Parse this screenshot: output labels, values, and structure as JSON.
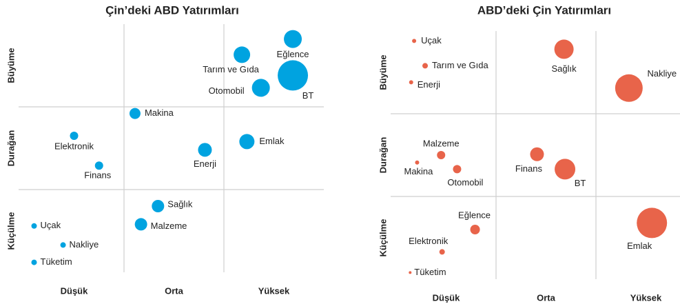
{
  "chart_data": [
    {
      "type": "bubble",
      "title": "Çin’deki ABD Yatırımları",
      "xlim": [
        0,
        3
      ],
      "ylim": [
        0,
        3
      ],
      "xticks": [
        {
          "value": 0.5,
          "label": "Düşük"
        },
        {
          "value": 1.5,
          "label": "Orta"
        },
        {
          "value": 2.5,
          "label": "Yüksek"
        }
      ],
      "yticks": [
        {
          "value": 0.5,
          "label": "Küçülme"
        },
        {
          "value": 1.5,
          "label": "Durağan"
        },
        {
          "value": 2.5,
          "label": "Büyüme"
        }
      ],
      "series": [
        {
          "color": "#00a3e0",
          "labels": [
            "Eğlence",
            "Tarım ve Gıda",
            "BT",
            "Otomobil",
            "Makina",
            "Elektronik",
            "Finans",
            "Enerji",
            "Emlak",
            "Sağlık",
            "Malzeme",
            "Uçak",
            "Nakliye",
            "Tüketim"
          ],
          "x": [
            2.69,
            2.18,
            2.69,
            2.37,
            1.11,
            0.5,
            0.75,
            1.81,
            2.23,
            1.34,
            1.17,
            0.1,
            0.39,
            0.1
          ],
          "values": [
            2.82,
            2.63,
            2.38,
            2.23,
            1.92,
            1.65,
            1.29,
            1.48,
            1.58,
            0.8,
            0.58,
            0.56,
            0.33,
            0.12
          ],
          "sizes": [
            13,
            12,
            22,
            13,
            8,
            6,
            6,
            10,
            11,
            9,
            9,
            4,
            4,
            4
          ]
        }
      ]
    },
    {
      "type": "bubble",
      "title": "ABD’deki Çin Yatırımları",
      "xlim": [
        0,
        3
      ],
      "ylim": [
        0,
        3
      ],
      "xticks": [
        {
          "value": 0.5,
          "label": "Düşük"
        },
        {
          "value": 1.5,
          "label": "Orta"
        },
        {
          "value": 2.5,
          "label": "Yüksek"
        }
      ],
      "yticks": [
        {
          "value": 0.5,
          "label": "Küçülme"
        },
        {
          "value": 1.5,
          "label": "Durağan"
        },
        {
          "value": 2.5,
          "label": "Büyüme"
        }
      ],
      "series": [
        {
          "color": "#e8644a",
          "labels": [
            "Uçak",
            "Tarım ve Gıda",
            "Enerji",
            "Sağlık",
            "Nakliye",
            "Malzeme",
            "Makina",
            "Otomobil",
            "Finans",
            "BT",
            "Eğlence",
            "Elektronik",
            "Tüketim",
            "Emlak"
          ],
          "x": [
            0.18,
            0.29,
            0.15,
            1.68,
            2.33,
            0.45,
            0.21,
            0.61,
            1.41,
            1.69,
            0.79,
            0.46,
            0.14,
            2.56
          ],
          "values": [
            2.88,
            2.58,
            2.38,
            2.78,
            2.31,
            1.5,
            1.41,
            1.33,
            1.51,
            1.33,
            0.6,
            0.33,
            0.08,
            0.68
          ],
          "sizes": [
            3,
            4,
            3,
            14,
            20,
            6,
            3,
            6,
            10,
            15,
            7,
            4,
            2,
            22
          ]
        }
      ]
    }
  ]
}
